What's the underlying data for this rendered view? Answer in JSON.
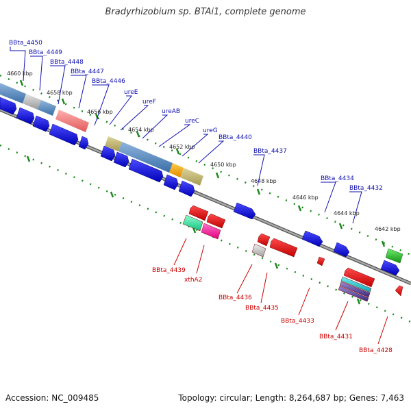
{
  "title": "Bradyrhizobium sp. BTAi1, complete genome",
  "footer": {
    "accession": "Accession: NC_009485",
    "summary": "Topology: circular; Length: 8,264,687 bp; Genes: 7,463"
  },
  "colors": {
    "forward_gene": "#1a1ad6",
    "reverse_gene": "#e00000",
    "backbone": "#888888",
    "tick": "#1d8a1d",
    "forward_label": "#1010b0",
    "reverse_label": "#cc0000"
  },
  "ticks": [
    {
      "label": "4660 kbp"
    },
    {
      "label": "4658 kbp"
    },
    {
      "label": "4656 kbp"
    },
    {
      "label": "4654 kbp"
    },
    {
      "label": "4652 kbp"
    },
    {
      "label": "4650 kbp"
    },
    {
      "label": "4648 kbp"
    },
    {
      "label": "4646 kbp"
    },
    {
      "label": "4644 kbp"
    },
    {
      "label": "4642 kbp"
    }
  ],
  "forward_labels": [
    {
      "name": "BBta_4450"
    },
    {
      "name": "BBta_4449"
    },
    {
      "name": "BBta_4448"
    },
    {
      "name": "BBta_4447"
    },
    {
      "name": "BBta_4446"
    },
    {
      "name": "ureE"
    },
    {
      "name": "ureF"
    },
    {
      "name": "ureAB"
    },
    {
      "name": "ureC"
    },
    {
      "name": "ureG"
    },
    {
      "name": "BBta_4440"
    },
    {
      "name": "BBta_4437"
    },
    {
      "name": "BBta_4434"
    },
    {
      "name": "BBta_4432"
    }
  ],
  "reverse_labels": [
    {
      "name": "BBta_4439"
    },
    {
      "name": "xthA2"
    },
    {
      "name": "BBta_4436"
    },
    {
      "name": "BBta_4435"
    },
    {
      "name": "BBta_4433"
    },
    {
      "name": "BBta_4431"
    },
    {
      "name": "BBta_4428"
    }
  ]
}
